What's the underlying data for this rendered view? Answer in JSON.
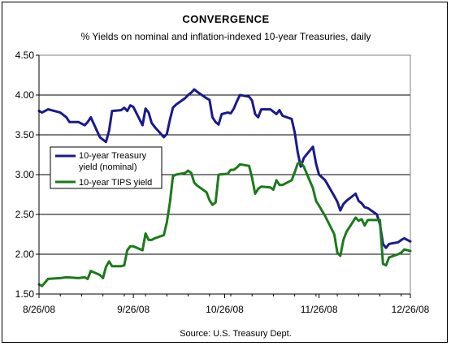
{
  "chart_data": {
    "type": "line",
    "title": "CONVERGENCE",
    "subtitle": "% Yields on nominal and inflation-indexed 10-year Treasuries, daily",
    "source": "Source: U.S. Treasury Dept.",
    "xlabel": "",
    "ylabel": "",
    "ylim": [
      1.5,
      4.5
    ],
    "y_ticks": [
      "1.50",
      "2.00",
      "2.50",
      "3.00",
      "3.50",
      "4.00",
      "4.50"
    ],
    "x_ticks": [
      "8/26/08",
      "9/26/08",
      "10/26/08",
      "11/26/08",
      "12/26/08"
    ],
    "x_range": [
      "2008-08-26",
      "2008-12-26"
    ],
    "grid": "horizontal",
    "legend_position": "left-middle",
    "series": [
      {
        "name": "10-year Treasury yield (nominal)",
        "color": "#1a1a8c",
        "points": [
          [
            "2008-08-26",
            3.8
          ],
          [
            "2008-08-27",
            3.78
          ],
          [
            "2008-08-29",
            3.82
          ],
          [
            "2008-09-02",
            3.78
          ],
          [
            "2008-09-04",
            3.72
          ],
          [
            "2008-09-05",
            3.66
          ],
          [
            "2008-09-08",
            3.66
          ],
          [
            "2008-09-10",
            3.62
          ],
          [
            "2008-09-11",
            3.66
          ],
          [
            "2008-09-12",
            3.72
          ],
          [
            "2008-09-15",
            3.47
          ],
          [
            "2008-09-16",
            3.44
          ],
          [
            "2008-09-17",
            3.41
          ],
          [
            "2008-09-18",
            3.55
          ],
          [
            "2008-09-19",
            3.8
          ],
          [
            "2008-09-22",
            3.81
          ],
          [
            "2008-09-23",
            3.84
          ],
          [
            "2008-09-24",
            3.8
          ],
          [
            "2008-09-25",
            3.87
          ],
          [
            "2008-09-26",
            3.85
          ],
          [
            "2008-09-29",
            3.62
          ],
          [
            "2008-09-30",
            3.83
          ],
          [
            "2008-10-01",
            3.78
          ],
          [
            "2008-10-02",
            3.65
          ],
          [
            "2008-10-03",
            3.6
          ],
          [
            "2008-10-06",
            3.47
          ],
          [
            "2008-10-07",
            3.51
          ],
          [
            "2008-10-08",
            3.69
          ],
          [
            "2008-10-09",
            3.84
          ],
          [
            "2008-10-10",
            3.88
          ],
          [
            "2008-10-13",
            3.96
          ],
          [
            "2008-10-14",
            4.0
          ],
          [
            "2008-10-15",
            4.03
          ],
          [
            "2008-10-16",
            4.07
          ],
          [
            "2008-10-17",
            4.04
          ],
          [
            "2008-10-20",
            3.96
          ],
          [
            "2008-10-21",
            3.94
          ],
          [
            "2008-10-22",
            3.72
          ],
          [
            "2008-10-23",
            3.66
          ],
          [
            "2008-10-24",
            3.63
          ],
          [
            "2008-10-25",
            3.76
          ],
          [
            "2008-10-27",
            3.78
          ],
          [
            "2008-10-28",
            3.77
          ],
          [
            "2008-10-29",
            3.83
          ],
          [
            "2008-10-30",
            3.92
          ],
          [
            "2008-10-31",
            4.0
          ],
          [
            "2008-11-03",
            3.98
          ],
          [
            "2008-11-04",
            3.93
          ],
          [
            "2008-11-05",
            3.76
          ],
          [
            "2008-11-06",
            3.72
          ],
          [
            "2008-11-07",
            3.82
          ],
          [
            "2008-11-10",
            3.82
          ],
          [
            "2008-11-12",
            3.76
          ],
          [
            "2008-11-13",
            3.81
          ],
          [
            "2008-11-14",
            3.74
          ],
          [
            "2008-11-17",
            3.7
          ],
          [
            "2008-11-18",
            3.53
          ],
          [
            "2008-11-19",
            3.28
          ],
          [
            "2008-11-20",
            3.1
          ],
          [
            "2008-11-21",
            3.21
          ],
          [
            "2008-11-24",
            3.35
          ],
          [
            "2008-11-25",
            3.14
          ],
          [
            "2008-11-26",
            3.0
          ],
          [
            "2008-11-28",
            2.93
          ],
          [
            "2008-12-01",
            2.73
          ],
          [
            "2008-12-02",
            2.66
          ],
          [
            "2008-12-03",
            2.55
          ],
          [
            "2008-12-04",
            2.63
          ],
          [
            "2008-12-05",
            2.67
          ],
          [
            "2008-12-08",
            2.76
          ],
          [
            "2008-12-09",
            2.67
          ],
          [
            "2008-12-10",
            2.64
          ],
          [
            "2008-12-11",
            2.59
          ],
          [
            "2008-12-12",
            2.58
          ],
          [
            "2008-12-15",
            2.5
          ],
          [
            "2008-12-16",
            2.38
          ],
          [
            "2008-12-17",
            2.13
          ],
          [
            "2008-12-18",
            2.08
          ],
          [
            "2008-12-19",
            2.13
          ],
          [
            "2008-12-22",
            2.15
          ],
          [
            "2008-12-23",
            2.18
          ],
          [
            "2008-12-24",
            2.2
          ],
          [
            "2008-12-26",
            2.16
          ]
        ]
      },
      {
        "name": "10-year TIPS yield",
        "color": "#1b7a1b",
        "points": [
          [
            "2008-08-26",
            1.62
          ],
          [
            "2008-08-27",
            1.6
          ],
          [
            "2008-08-29",
            1.69
          ],
          [
            "2008-09-02",
            1.7
          ],
          [
            "2008-09-04",
            1.71
          ],
          [
            "2008-09-08",
            1.7
          ],
          [
            "2008-09-10",
            1.71
          ],
          [
            "2008-09-11",
            1.69
          ],
          [
            "2008-09-12",
            1.79
          ],
          [
            "2008-09-15",
            1.74
          ],
          [
            "2008-09-16",
            1.7
          ],
          [
            "2008-09-17",
            1.84
          ],
          [
            "2008-09-18",
            1.91
          ],
          [
            "2008-09-19",
            1.85
          ],
          [
            "2008-09-22",
            1.85
          ],
          [
            "2008-09-23",
            1.86
          ],
          [
            "2008-09-24",
            2.05
          ],
          [
            "2008-09-25",
            2.1
          ],
          [
            "2008-09-26",
            2.1
          ],
          [
            "2008-09-29",
            2.05
          ],
          [
            "2008-09-30",
            2.26
          ],
          [
            "2008-10-01",
            2.18
          ],
          [
            "2008-10-02",
            2.18
          ],
          [
            "2008-10-03",
            2.2
          ],
          [
            "2008-10-06",
            2.24
          ],
          [
            "2008-10-07",
            2.4
          ],
          [
            "2008-10-08",
            2.65
          ],
          [
            "2008-10-09",
            2.98
          ],
          [
            "2008-10-10",
            3.0
          ],
          [
            "2008-10-13",
            3.02
          ],
          [
            "2008-10-14",
            3.05
          ],
          [
            "2008-10-15",
            3.02
          ],
          [
            "2008-10-16",
            2.9
          ],
          [
            "2008-10-17",
            2.86
          ],
          [
            "2008-10-20",
            2.78
          ],
          [
            "2008-10-21",
            2.68
          ],
          [
            "2008-10-22",
            2.62
          ],
          [
            "2008-10-23",
            2.65
          ],
          [
            "2008-10-24",
            3.0
          ],
          [
            "2008-10-27",
            3.01
          ],
          [
            "2008-10-28",
            3.06
          ],
          [
            "2008-10-29",
            3.06
          ],
          [
            "2008-10-30",
            3.09
          ],
          [
            "2008-10-31",
            3.13
          ],
          [
            "2008-11-03",
            3.11
          ],
          [
            "2008-11-04",
            2.96
          ],
          [
            "2008-11-05",
            2.76
          ],
          [
            "2008-11-06",
            2.82
          ],
          [
            "2008-11-07",
            2.85
          ],
          [
            "2008-11-10",
            2.84
          ],
          [
            "2008-11-11",
            2.81
          ],
          [
            "2008-11-12",
            2.93
          ],
          [
            "2008-11-13",
            2.87
          ],
          [
            "2008-11-14",
            2.87
          ],
          [
            "2008-11-17",
            2.93
          ],
          [
            "2008-11-18",
            3.03
          ],
          [
            "2008-11-19",
            3.14
          ],
          [
            "2008-11-20",
            3.15
          ],
          [
            "2008-11-21",
            3.1
          ],
          [
            "2008-11-24",
            2.83
          ],
          [
            "2008-11-25",
            2.67
          ],
          [
            "2008-11-26",
            2.61
          ],
          [
            "2008-11-28",
            2.48
          ],
          [
            "2008-12-01",
            2.25
          ],
          [
            "2008-12-02",
            2.02
          ],
          [
            "2008-12-03",
            1.98
          ],
          [
            "2008-12-04",
            2.18
          ],
          [
            "2008-12-05",
            2.28
          ],
          [
            "2008-12-08",
            2.46
          ],
          [
            "2008-12-09",
            2.42
          ],
          [
            "2008-12-10",
            2.44
          ],
          [
            "2008-12-11",
            2.36
          ],
          [
            "2008-12-12",
            2.43
          ],
          [
            "2008-12-15",
            2.43
          ],
          [
            "2008-12-16",
            2.43
          ],
          [
            "2008-12-17",
            1.88
          ],
          [
            "2008-12-18",
            1.86
          ],
          [
            "2008-12-19",
            1.96
          ],
          [
            "2008-12-22",
            2.0
          ],
          [
            "2008-12-23",
            2.02
          ],
          [
            "2008-12-24",
            2.06
          ],
          [
            "2008-12-26",
            2.04
          ]
        ]
      }
    ]
  }
}
